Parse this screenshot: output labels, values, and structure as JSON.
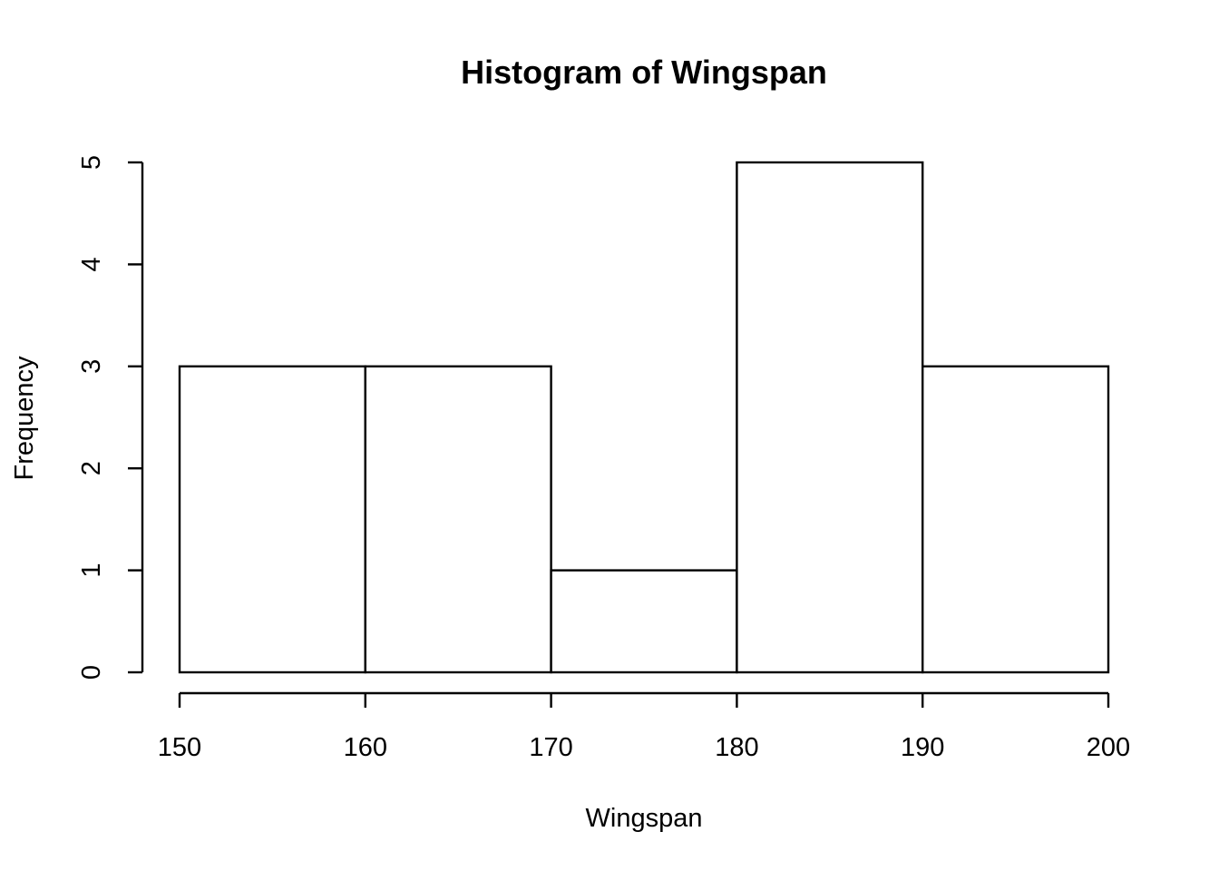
{
  "chart_data": {
    "type": "bar",
    "subtype": "histogram",
    "title": "Histogram of Wingspan",
    "xlabel": "Wingspan",
    "ylabel": "Frequency",
    "bins": [
      {
        "start": 150,
        "end": 160,
        "count": 3
      },
      {
        "start": 160,
        "end": 170,
        "count": 3
      },
      {
        "start": 170,
        "end": 180,
        "count": 1
      },
      {
        "start": 180,
        "end": 190,
        "count": 5
      },
      {
        "start": 190,
        "end": 200,
        "count": 3
      }
    ],
    "xlim": [
      150,
      200
    ],
    "ylim": [
      0,
      5
    ],
    "x_ticks": [
      "150",
      "160",
      "170",
      "180",
      "190",
      "200"
    ],
    "y_ticks": [
      "0",
      "1",
      "2",
      "3",
      "4",
      "5"
    ],
    "bar_fill": "#ffffff",
    "bar_stroke": "#000000",
    "grid": false,
    "legend": "none"
  }
}
